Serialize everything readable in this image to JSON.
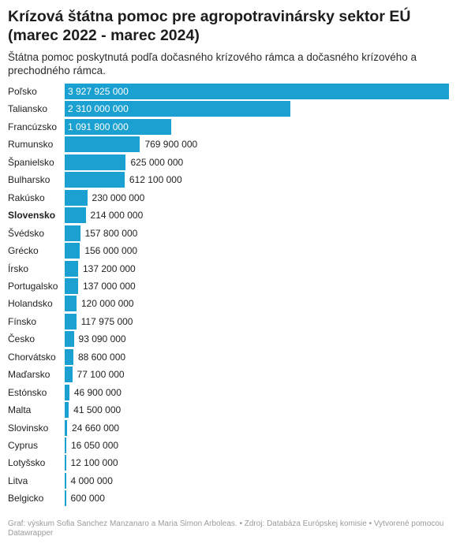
{
  "header": {
    "title": "Krízová štátna pomoc pre agropotravinársky sektor EÚ (marec 2022 - marec 2024)",
    "subtitle": "Štátna pomoc poskytnutá podľa dočasného krízového rámca a dočasného krízového a prechodného rámca."
  },
  "footer": {
    "text": "Graf: výskum Sofia Sanchez Manzanaro a Maria Simon Arboleas. • Zdroj: Databáza Európskej komisie • Vytvorené pomocou Datawrapper"
  },
  "colors": {
    "bar": "#1aa0d1"
  },
  "chart_data": {
    "type": "bar",
    "orientation": "horizontal",
    "highlight": "Slovensko",
    "categories": [
      "Poľsko",
      "Taliansko",
      "Francúzsko",
      "Rumunsko",
      "Španielsko",
      "Bulharsko",
      "Rakúsko",
      "Slovensko",
      "Švédsko",
      "Grécko",
      "Írsko",
      "Portugalsko",
      "Holandsko",
      "Fínsko",
      "Česko",
      "Chorvátsko",
      "Maďarsko",
      "Estónsko",
      "Malta",
      "Slovinsko",
      "Cyprus",
      "Lotyšsko",
      "Litva",
      "Belgicko"
    ],
    "values": [
      3927925000,
      2310000000,
      1091800000,
      769900000,
      625000000,
      612100000,
      230000000,
      214000000,
      157800000,
      156000000,
      137200000,
      137000000,
      120000000,
      117975000,
      93090000,
      88600000,
      77100000,
      46900000,
      41500000,
      24660000,
      16050000,
      12100000,
      4000000,
      600000
    ],
    "value_labels": [
      "3 927 925 000",
      "2 310 000 000",
      "1 091 800 000",
      "769 900 000",
      "625 000 000",
      "612 100 000",
      "230 000 000",
      "214 000 000",
      "157 800 000",
      "156 000 000",
      "137 200 000",
      "137 000 000",
      "120 000 000",
      "117 975 000",
      "93 090 000",
      "88 600 000",
      "77 100 000",
      "46 900 000",
      "41 500 000",
      "24 660 000",
      "16 050 000",
      "12 100 000",
      "4 000 000",
      "600 000"
    ],
    "xlim": [
      0,
      3927925000
    ]
  }
}
